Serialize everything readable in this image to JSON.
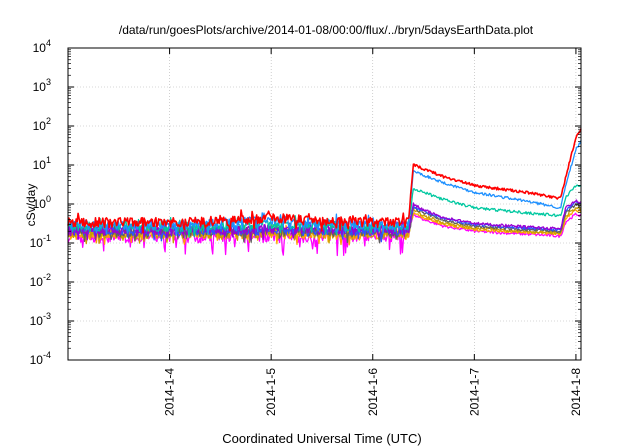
{
  "chart_data": {
    "type": "line",
    "title": "/data/run/goesPlots/archive/2014-01-08/00:00/flux/../bryn/5daysEarthData.plot",
    "xlabel": "Coordinated Universal Time (UTC)",
    "ylabel": "cSv/day",
    "y_scale": "log",
    "ylim": [
      0.0001,
      10000
    ],
    "xlim": [
      0.0,
      5.05
    ],
    "x_unit": "days since 2014-01-03 00:00 UTC",
    "grid": true,
    "legend": "none",
    "x_ticks": [
      {
        "value": 1,
        "label": "2014-1-4"
      },
      {
        "value": 2,
        "label": "2014-1-5"
      },
      {
        "value": 3,
        "label": "2014-1-6"
      },
      {
        "value": 4,
        "label": "2014-1-7"
      },
      {
        "value": 5,
        "label": "2014-1-8"
      }
    ],
    "y_ticks": [
      {
        "value": 0.0001,
        "mantissa": "10",
        "exp": "-4"
      },
      {
        "value": 0.001,
        "mantissa": "10",
        "exp": "-3"
      },
      {
        "value": 0.01,
        "mantissa": "10",
        "exp": "-2"
      },
      {
        "value": 0.1,
        "mantissa": "10",
        "exp": "-1"
      },
      {
        "value": 1,
        "mantissa": "10",
        "exp": "0"
      },
      {
        "value": 10,
        "mantissa": "10",
        "exp": "1"
      },
      {
        "value": 100,
        "mantissa": "10",
        "exp": "2"
      },
      {
        "value": 1000,
        "mantissa": "10",
        "exp": "3"
      },
      {
        "value": 10000,
        "mantissa": "10",
        "exp": "4"
      }
    ],
    "series": [
      {
        "color": "#ff00ff",
        "x": [
          0.0,
          1.0,
          2.0,
          3.0,
          3.35,
          3.4,
          3.5,
          3.7,
          4.0,
          4.5,
          4.85,
          4.9,
          5.0,
          5.05
        ],
        "values": [
          0.14,
          0.14,
          0.14,
          0.15,
          0.15,
          0.55,
          0.4,
          0.27,
          0.2,
          0.17,
          0.15,
          0.35,
          0.55,
          0.5
        ]
      },
      {
        "color": "#ffa500",
        "x": [
          0.0,
          1.0,
          2.0,
          3.0,
          3.35,
          3.4,
          3.5,
          3.7,
          4.0,
          4.5,
          4.85,
          4.9,
          5.0,
          5.05
        ],
        "values": [
          0.17,
          0.17,
          0.17,
          0.17,
          0.17,
          0.6,
          0.45,
          0.3,
          0.22,
          0.19,
          0.17,
          0.42,
          0.7,
          0.65
        ]
      },
      {
        "color": "#c8a000",
        "x": [
          0.0,
          1.0,
          2.0,
          3.0,
          3.35,
          3.4,
          3.5,
          3.7,
          4.0,
          4.5,
          4.85,
          4.9,
          5.0,
          5.05
        ],
        "values": [
          0.18,
          0.18,
          0.18,
          0.18,
          0.18,
          0.7,
          0.5,
          0.33,
          0.24,
          0.2,
          0.18,
          0.5,
          0.8,
          0.75
        ]
      },
      {
        "color": "#606060",
        "x": [
          0.0,
          1.0,
          2.0,
          3.0,
          3.35,
          3.4,
          3.5,
          3.7,
          4.0,
          4.5,
          4.85,
          4.9,
          5.0,
          5.05
        ],
        "values": [
          0.2,
          0.2,
          0.21,
          0.2,
          0.2,
          0.8,
          0.6,
          0.38,
          0.27,
          0.22,
          0.2,
          0.6,
          0.95,
          0.9
        ]
      },
      {
        "color": "#3050ff",
        "x": [
          0.0,
          1.0,
          2.0,
          3.0,
          3.35,
          3.4,
          3.5,
          3.7,
          4.0,
          4.5,
          4.85,
          4.9,
          5.0,
          5.05
        ],
        "values": [
          0.21,
          0.21,
          0.22,
          0.21,
          0.21,
          0.9,
          0.65,
          0.42,
          0.3,
          0.24,
          0.22,
          0.7,
          1.1,
          1.0
        ]
      },
      {
        "color": "#9b00d3",
        "x": [
          0.0,
          1.0,
          2.0,
          3.0,
          3.35,
          3.4,
          3.5,
          3.7,
          4.0,
          4.5,
          4.85,
          4.9,
          5.0,
          5.05
        ],
        "values": [
          0.22,
          0.22,
          0.23,
          0.22,
          0.22,
          1.0,
          0.7,
          0.45,
          0.32,
          0.26,
          0.23,
          0.8,
          1.2,
          1.1
        ]
      },
      {
        "color": "#00c8a0",
        "x": [
          0.0,
          1.0,
          2.0,
          3.0,
          3.35,
          3.4,
          3.5,
          3.7,
          4.0,
          4.5,
          4.85,
          4.9,
          5.0,
          5.05
        ],
        "values": [
          0.27,
          0.27,
          0.3,
          0.27,
          0.27,
          2.5,
          2.0,
          1.3,
          0.8,
          0.6,
          0.5,
          1.5,
          3.0,
          3.0
        ]
      },
      {
        "color": "#1e90ff",
        "x": [
          0.0,
          1.0,
          2.0,
          3.0,
          3.35,
          3.4,
          3.5,
          3.7,
          4.0,
          4.5,
          4.85,
          4.9,
          5.0,
          5.05
        ],
        "values": [
          0.3,
          0.3,
          0.38,
          0.3,
          0.3,
          7.0,
          5.5,
          3.5,
          2.0,
          1.2,
          0.8,
          3.0,
          25,
          40
        ]
      },
      {
        "color": "#ff0000",
        "x": [
          0.0,
          1.0,
          2.0,
          3.0,
          3.35,
          3.4,
          3.5,
          3.7,
          4.0,
          4.5,
          4.85,
          4.9,
          5.0,
          5.05
        ],
        "values": [
          0.35,
          0.35,
          0.45,
          0.35,
          0.35,
          10,
          8.0,
          5.0,
          3.0,
          2.0,
          1.4,
          5.0,
          50,
          80
        ]
      }
    ]
  }
}
